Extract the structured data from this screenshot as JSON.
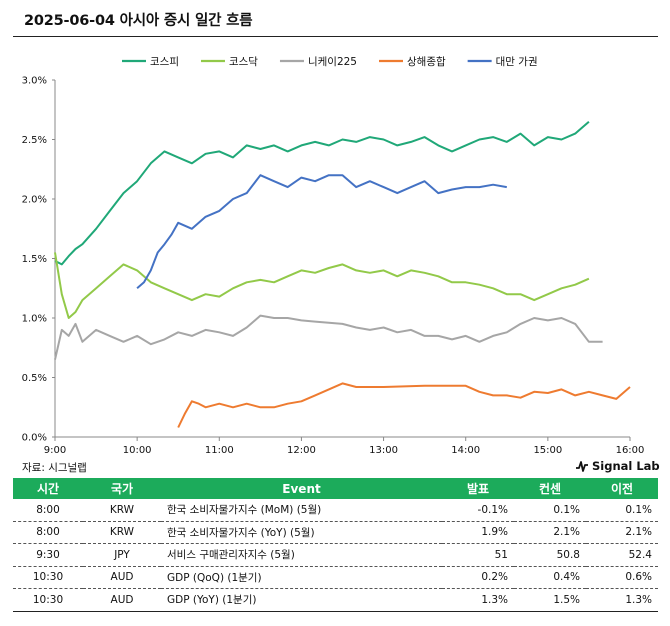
{
  "title": "2025-06-04 아시아 증시 일간 흐름",
  "source": "자료: 시그널랩",
  "logo": "Signal Lab",
  "colors": {
    "코스피": "#20a878",
    "코스닥": "#92c949",
    "니케이225": "#a6a6a6",
    "상해종합": "#ee7b30",
    "대만 가권": "#4472c4"
  },
  "chart_data": {
    "type": "line",
    "title": "",
    "xlabel": "",
    "ylabel": "",
    "x_ticks": [
      "9:00",
      "10:00",
      "11:00",
      "12:00",
      "13:00",
      "14:00",
      "15:00",
      "16:00"
    ],
    "y_ticks": [
      "0.0%",
      "0.5%",
      "1.0%",
      "1.5%",
      "2.0%",
      "2.5%",
      "3.0%"
    ],
    "xlim_hours": [
      9,
      16
    ],
    "ylim": [
      0,
      3.0
    ],
    "legend_position": "top",
    "series": [
      {
        "name": "코스피",
        "x": [
          "9:00",
          "9:05",
          "9:10",
          "9:15",
          "9:20",
          "9:30",
          "9:40",
          "9:50",
          "10:00",
          "10:10",
          "10:20",
          "10:30",
          "10:40",
          "10:50",
          "11:00",
          "11:10",
          "11:20",
          "11:30",
          "11:40",
          "11:50",
          "12:00",
          "12:10",
          "12:20",
          "12:30",
          "12:40",
          "12:50",
          "13:00",
          "13:10",
          "13:20",
          "13:30",
          "13:40",
          "13:50",
          "14:00",
          "14:10",
          "14:20",
          "14:30",
          "14:40",
          "14:50",
          "15:00",
          "15:10",
          "15:20",
          "15:30"
        ],
        "values": [
          1.48,
          1.45,
          1.52,
          1.58,
          1.62,
          1.75,
          1.9,
          2.05,
          2.15,
          2.3,
          2.4,
          2.35,
          2.3,
          2.38,
          2.4,
          2.35,
          2.45,
          2.42,
          2.45,
          2.4,
          2.45,
          2.48,
          2.45,
          2.5,
          2.48,
          2.52,
          2.5,
          2.45,
          2.48,
          2.52,
          2.45,
          2.4,
          2.45,
          2.5,
          2.52,
          2.48,
          2.55,
          2.45,
          2.52,
          2.5,
          2.55,
          2.65
        ]
      },
      {
        "name": "코스닥",
        "x": [
          "9:00",
          "9:05",
          "9:10",
          "9:15",
          "9:20",
          "9:30",
          "9:40",
          "9:50",
          "10:00",
          "10:10",
          "10:20",
          "10:30",
          "10:40",
          "10:50",
          "11:00",
          "11:10",
          "11:20",
          "11:30",
          "11:40",
          "11:50",
          "12:00",
          "12:10",
          "12:20",
          "12:30",
          "12:40",
          "12:50",
          "13:00",
          "13:10",
          "13:20",
          "13:30",
          "13:40",
          "13:50",
          "14:00",
          "14:10",
          "14:20",
          "14:30",
          "14:40",
          "14:50",
          "15:00",
          "15:10",
          "15:20",
          "15:30"
        ],
        "values": [
          1.55,
          1.2,
          1.0,
          1.05,
          1.15,
          1.25,
          1.35,
          1.45,
          1.4,
          1.3,
          1.25,
          1.2,
          1.15,
          1.2,
          1.18,
          1.25,
          1.3,
          1.32,
          1.3,
          1.35,
          1.4,
          1.38,
          1.42,
          1.45,
          1.4,
          1.38,
          1.4,
          1.35,
          1.4,
          1.38,
          1.35,
          1.3,
          1.3,
          1.28,
          1.25,
          1.2,
          1.2,
          1.15,
          1.2,
          1.25,
          1.28,
          1.33
        ]
      },
      {
        "name": "니케이225",
        "x": [
          "9:00",
          "9:05",
          "9:10",
          "9:15",
          "9:20",
          "9:30",
          "9:40",
          "9:50",
          "10:00",
          "10:10",
          "10:20",
          "10:30",
          "10:40",
          "10:50",
          "11:00",
          "11:10",
          "11:20",
          "11:30",
          "11:40",
          "11:50",
          "12:00",
          "12:10",
          "12:20",
          "12:30",
          "12:40",
          "12:50",
          "13:00",
          "13:10",
          "13:20",
          "13:30",
          "13:40",
          "13:50",
          "14:00",
          "14:10",
          "14:20",
          "14:30",
          "14:40",
          "14:50",
          "15:00",
          "15:10",
          "15:20",
          "15:30",
          "15:40"
        ],
        "values": [
          0.65,
          0.9,
          0.85,
          0.95,
          0.8,
          0.9,
          0.85,
          0.8,
          0.85,
          0.78,
          0.82,
          0.88,
          0.85,
          0.9,
          0.88,
          0.85,
          0.92,
          1.02,
          1.0,
          1.0,
          0.98,
          0.97,
          0.96,
          0.95,
          0.92,
          0.9,
          0.92,
          0.88,
          0.9,
          0.85,
          0.85,
          0.82,
          0.85,
          0.8,
          0.85,
          0.88,
          0.95,
          1.0,
          0.98,
          1.0,
          0.95,
          0.8,
          0.8
        ]
      },
      {
        "name": "상해종합",
        "x": [
          "10:30",
          "10:35",
          "10:40",
          "10:45",
          "10:50",
          "11:00",
          "11:10",
          "11:20",
          "11:30",
          "11:40",
          "11:50",
          "12:00",
          "12:10",
          "12:20",
          "12:30",
          "12:40",
          "12:50",
          "13:00",
          "13:30",
          "14:00",
          "14:10",
          "14:20",
          "14:30",
          "14:40",
          "14:50",
          "15:00",
          "15:10",
          "15:20",
          "15:30",
          "15:40",
          "15:50",
          "16:00"
        ],
        "values": [
          0.08,
          0.2,
          0.3,
          0.28,
          0.25,
          0.28,
          0.25,
          0.28,
          0.25,
          0.25,
          0.28,
          0.3,
          0.35,
          0.4,
          0.45,
          0.42,
          0.42,
          0.42,
          0.43,
          0.43,
          0.38,
          0.35,
          0.35,
          0.33,
          0.38,
          0.37,
          0.4,
          0.35,
          0.38,
          0.35,
          0.32,
          0.42
        ]
      },
      {
        "name": "대만 가권",
        "x": [
          "10:00",
          "10:05",
          "10:10",
          "10:15",
          "10:20",
          "10:25",
          "10:30",
          "10:40",
          "10:50",
          "11:00",
          "11:10",
          "11:20",
          "11:30",
          "11:40",
          "11:50",
          "12:00",
          "12:10",
          "12:20",
          "12:30",
          "12:40",
          "12:50",
          "13:00",
          "13:10",
          "13:20",
          "13:30",
          "13:40",
          "13:50",
          "14:00",
          "14:10",
          "14:20",
          "14:30"
        ],
        "values": [
          1.25,
          1.3,
          1.4,
          1.55,
          1.62,
          1.7,
          1.8,
          1.75,
          1.85,
          1.9,
          2.0,
          2.05,
          2.2,
          2.15,
          2.1,
          2.18,
          2.15,
          2.2,
          2.2,
          2.1,
          2.15,
          2.1,
          2.05,
          2.1,
          2.15,
          2.05,
          2.08,
          2.1,
          2.1,
          2.12,
          2.1
        ]
      }
    ]
  },
  "table": {
    "headers": [
      "시간",
      "국가",
      "Event",
      "발표",
      "컨센",
      "이전"
    ],
    "rows": [
      [
        "8:00",
        "KRW",
        "한국 소비자물가지수 (MoM) (5월)",
        "-0.1%",
        "0.1%",
        "0.1%"
      ],
      [
        "8:00",
        "KRW",
        "한국 소비자물가지수 (YoY) (5월)",
        "1.9%",
        "2.1%",
        "2.1%"
      ],
      [
        "9:30",
        "JPY",
        "서비스 구매관리자지수 (5월)",
        "51",
        "50.8",
        "52.4"
      ],
      [
        "10:30",
        "AUD",
        "GDP (QoQ) (1분기)",
        "0.2%",
        "0.4%",
        "0.6%"
      ],
      [
        "10:30",
        "AUD",
        "GDP (YoY) (1분기)",
        "1.3%",
        "1.5%",
        "1.3%"
      ]
    ]
  }
}
